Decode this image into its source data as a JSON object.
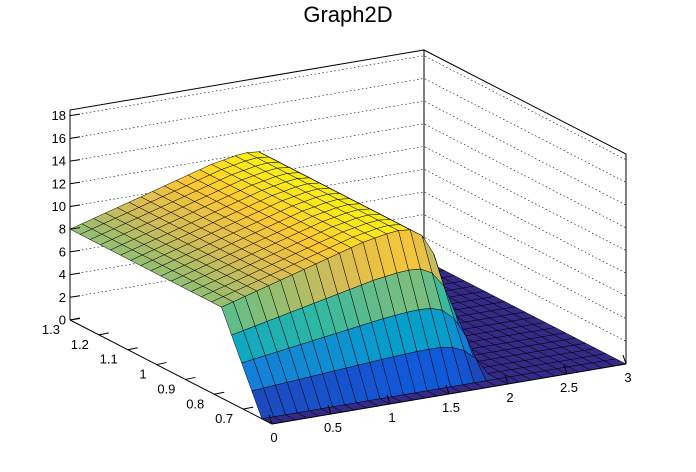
{
  "chart_data": {
    "type": "surface",
    "title": "Graph2D",
    "xlabel": "",
    "ylabel": "",
    "zlabel": "",
    "x_range": [
      0,
      3
    ],
    "y_range": [
      0.6,
      1.3
    ],
    "z_range": [
      0,
      18.5
    ],
    "x_ticks": [
      "0",
      "0.5",
      "1",
      "1.5",
      "2",
      "2.5",
      "3"
    ],
    "y_ticks": [
      "0.7",
      "0.8",
      "0.9",
      "1",
      "1.1",
      "1.2",
      "1.3"
    ],
    "z_ticks": [
      "0",
      "2",
      "4",
      "6",
      "8",
      "10",
      "12",
      "14",
      "16",
      "18"
    ],
    "grid": true,
    "colormap": [
      "#352a87",
      "#0f5cdd",
      "#1481d6",
      "#06a4ca",
      "#2eb7a4",
      "#87bf77",
      "#d1bb59",
      "#fec832",
      "#f9fb0e"
    ],
    "surface_profile": {
      "description_x": [
        0,
        0.1,
        0.2,
        0.3,
        0.4,
        0.5,
        0.6,
        0.7,
        0.8,
        0.9,
        1.0,
        1.1,
        1.2,
        1.3,
        1.4,
        1.5,
        1.6,
        1.7,
        1.8,
        1.9,
        2.0,
        2.1,
        2.2,
        2.3,
        2.4,
        2.5,
        2.6,
        2.7,
        2.8,
        2.9,
        3.0
      ],
      "height_at_y_high": [
        8,
        8.3,
        8.6,
        8.9,
        9.2,
        9.5,
        9.8,
        10.1,
        10.4,
        10.7,
        11,
        11.3,
        11.6,
        11.8,
        12,
        12.1,
        12,
        11.3,
        9.5,
        6,
        0,
        0,
        0,
        0,
        0,
        0,
        0,
        0,
        0,
        0,
        0
      ],
      "height_at_y_low": [
        0,
        0,
        0,
        0,
        0,
        0,
        0,
        0,
        0,
        0,
        0,
        0,
        0,
        0,
        0,
        0,
        0,
        0,
        0,
        0,
        0,
        0,
        0,
        0,
        0,
        0,
        0,
        0,
        0,
        0,
        0
      ]
    }
  }
}
